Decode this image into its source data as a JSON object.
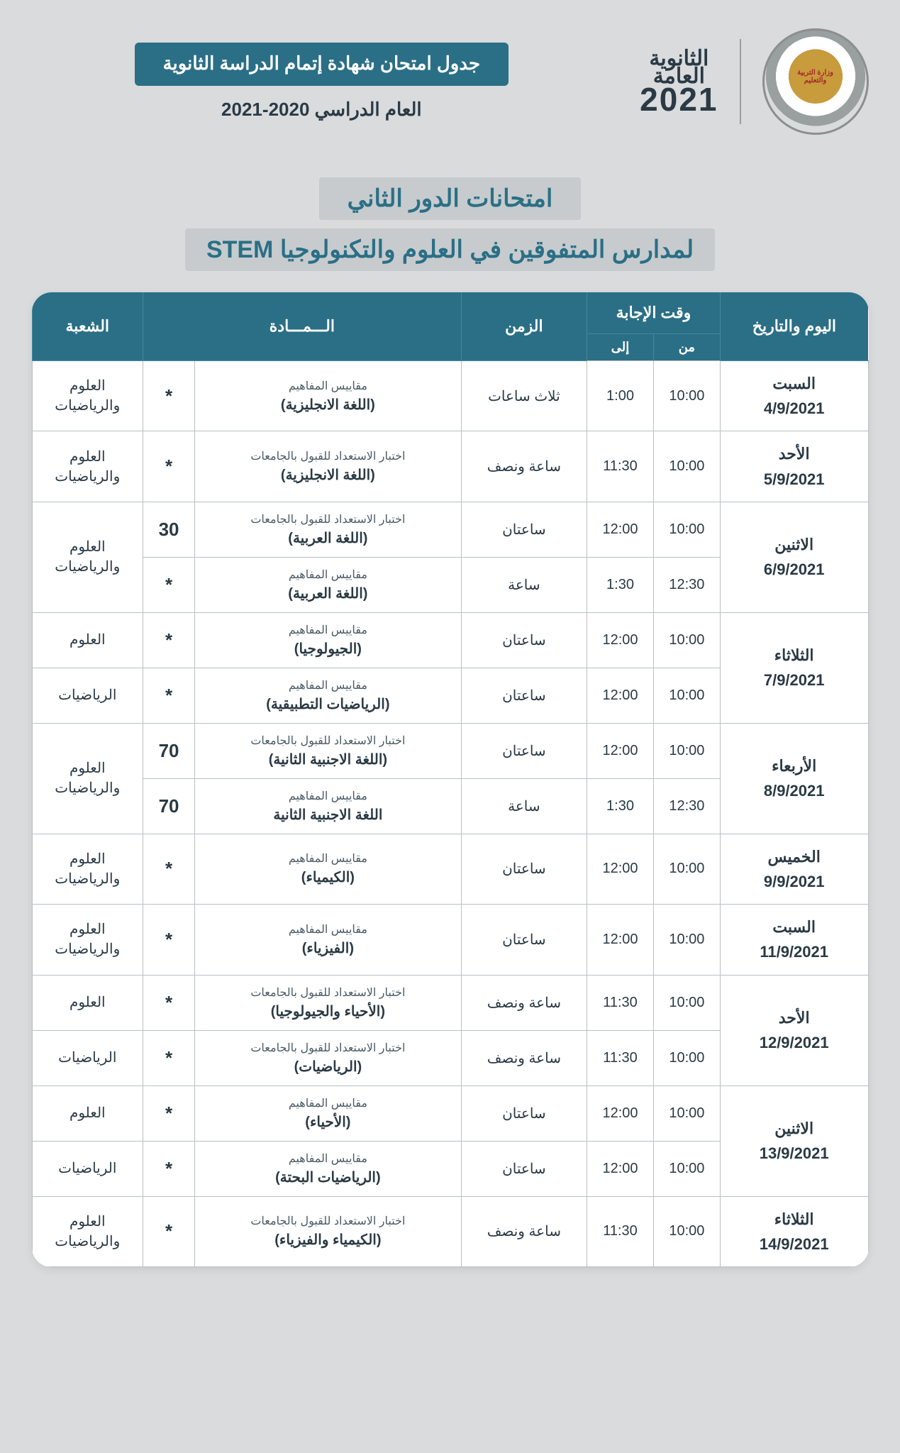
{
  "header": {
    "seal_text": "وزارة التربية والتعليم",
    "logo_line1": "الثانوية",
    "logo_line2": "العامة",
    "logo_year": "2021",
    "pill": "جدول امتحان شهادة إتمام الدراسة الثانوية",
    "subtitle": "العام الدراسي 2020-2021"
  },
  "section": {
    "line1": "امتحانات الدور الثاني",
    "line2": "لمدارس المتفوقين في العلوم والتكنولوجيا STEM"
  },
  "columns": {
    "day": "اليوم والتاريخ",
    "answer_time": "وقت الإجابة",
    "from": "من",
    "to": "إلى",
    "duration": "الزمن",
    "subject": "الـــمـــادة",
    "track": "الشعبة"
  },
  "tracks": {
    "both": "العلوم\nوالرياضيات",
    "sci": "العلوم",
    "math": "الرياضيات"
  },
  "subj_prefix": {
    "concepts": "مقاييس المفاهيم",
    "readiness": "اختبار الاستعداد للقبول بالجامعات"
  },
  "days": [
    {
      "day": "السبت",
      "date": "4/9/2021",
      "rows": [
        {
          "from": "10:00",
          "to": "1:00",
          "dur": "ثلاث ساعات",
          "prefix": "concepts",
          "subj": "(اللغة الانجليزية)",
          "score": "*",
          "track": "both"
        }
      ]
    },
    {
      "day": "الأحد",
      "date": "5/9/2021",
      "rows": [
        {
          "from": "10:00",
          "to": "11:30",
          "dur": "ساعة ونصف",
          "prefix": "readiness",
          "subj": "(اللغة الانجليزية)",
          "score": "*",
          "track": "both"
        }
      ]
    },
    {
      "day": "الاثنين",
      "date": "6/9/2021",
      "rows": [
        {
          "from": "10:00",
          "to": "12:00",
          "dur": "ساعتان",
          "prefix": "readiness",
          "subj": "(اللغة العربية)",
          "score": "30",
          "track": "both",
          "track_rowspan": 2
        },
        {
          "from": "12:30",
          "to": "1:30",
          "dur": "ساعة",
          "prefix": "concepts",
          "subj": "(اللغة العربية)",
          "score": "*"
        }
      ]
    },
    {
      "day": "الثلاثاء",
      "date": "7/9/2021",
      "rows": [
        {
          "from": "10:00",
          "to": "12:00",
          "dur": "ساعتان",
          "prefix": "concepts",
          "subj": "(الجيولوجيا)",
          "score": "*",
          "track": "sci"
        },
        {
          "from": "10:00",
          "to": "12:00",
          "dur": "ساعتان",
          "prefix": "concepts",
          "subj": "(الرياضيات التطبيقية)",
          "score": "*",
          "track": "math"
        }
      ]
    },
    {
      "day": "الأربعاء",
      "date": "8/9/2021",
      "rows": [
        {
          "from": "10:00",
          "to": "12:00",
          "dur": "ساعتان",
          "prefix": "readiness",
          "subj": "(اللغة الاجنبية الثانية)",
          "score": "70",
          "track": "both",
          "track_rowspan": 2
        },
        {
          "from": "12:30",
          "to": "1:30",
          "dur": "ساعة",
          "prefix": "concepts",
          "subj": "اللغة الاجنبية الثانية",
          "score": "70"
        }
      ]
    },
    {
      "day": "الخميس",
      "date": "9/9/2021",
      "rows": [
        {
          "from": "10:00",
          "to": "12:00",
          "dur": "ساعتان",
          "prefix": "concepts",
          "subj": "(الكيمياء)",
          "score": "*",
          "track": "both"
        }
      ]
    },
    {
      "day": "السبت",
      "date": "11/9/2021",
      "rows": [
        {
          "from": "10:00",
          "to": "12:00",
          "dur": "ساعتان",
          "prefix": "concepts",
          "subj": "(الفيزياء)",
          "score": "*",
          "track": "both"
        }
      ]
    },
    {
      "day": "الأحد",
      "date": "12/9/2021",
      "rows": [
        {
          "from": "10:00",
          "to": "11:30",
          "dur": "ساعة ونصف",
          "prefix": "readiness",
          "subj": "(الأحياء والجيولوجيا)",
          "score": "*",
          "track": "sci"
        },
        {
          "from": "10:00",
          "to": "11:30",
          "dur": "ساعة ونصف",
          "prefix": "readiness",
          "subj": "(الرياضيات)",
          "score": "*",
          "track": "math"
        }
      ]
    },
    {
      "day": "الاثنين",
      "date": "13/9/2021",
      "rows": [
        {
          "from": "10:00",
          "to": "12:00",
          "dur": "ساعتان",
          "prefix": "concepts",
          "subj": "(الأحياء)",
          "score": "*",
          "track": "sci"
        },
        {
          "from": "10:00",
          "to": "12:00",
          "dur": "ساعتان",
          "prefix": "concepts",
          "subj": "(الرياضيات البحتة)",
          "score": "*",
          "track": "math"
        }
      ]
    },
    {
      "day": "الثلاثاء",
      "date": "14/9/2021",
      "rows": [
        {
          "from": "10:00",
          "to": "11:30",
          "dur": "ساعة ونصف",
          "prefix": "readiness",
          "subj": "(الكيمياء والفيزياء)",
          "score": "*",
          "track": "both"
        }
      ]
    }
  ],
  "style": {
    "header_bg": "#2a6f86",
    "page_bg": "#d9dbdd",
    "pill_bg": "#c7cbcd",
    "text_color": "#2a3a44",
    "border_color": "#b9c0c3"
  }
}
